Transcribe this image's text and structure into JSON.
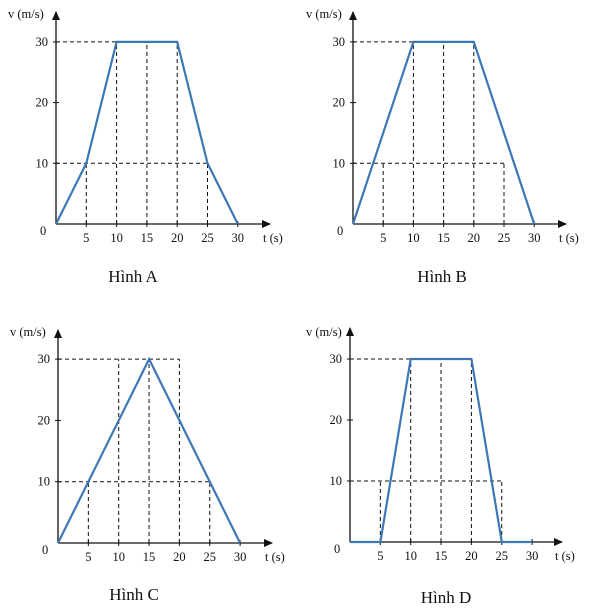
{
  "colors": {
    "line": "#3d78b6",
    "axis": "#111111",
    "grid": "#111111"
  },
  "chart_data": [
    {
      "type": "line",
      "title": "Hình A",
      "xlabel": "t (s)",
      "ylabel": "v (m/s)",
      "x_ticks": [
        "5",
        "10",
        "15",
        "20",
        "25",
        "30"
      ],
      "y_ticks": [
        "10",
        "20",
        "30"
      ],
      "origin_label": "0",
      "xlim": [
        0,
        30
      ],
      "ylim": [
        0,
        30
      ],
      "series": [
        {
          "points": [
            [
              0,
              0
            ],
            [
              5,
              10
            ],
            [
              10,
              30
            ],
            [
              20,
              30
            ],
            [
              25,
              10
            ],
            [
              30,
              0
            ]
          ]
        }
      ],
      "guides": [
        {
          "x": 5,
          "y": 10
        },
        {
          "x": 10,
          "y": 30
        },
        {
          "x": 15,
          "y": 30
        },
        {
          "x": 20,
          "y": 30
        },
        {
          "x": 25,
          "y": 10
        }
      ],
      "h_guides": [
        {
          "y": 30,
          "x_end": 10
        },
        {
          "y": 10,
          "x_end": 25
        }
      ]
    },
    {
      "type": "line",
      "title": "Hình B",
      "xlabel": "t (s)",
      "ylabel": "v (m/s)",
      "x_ticks": [
        "5",
        "10",
        "15",
        "20",
        "25",
        "30"
      ],
      "y_ticks": [
        "10",
        "20",
        "30"
      ],
      "origin_label": "0",
      "xlim": [
        0,
        30
      ],
      "ylim": [
        0,
        30
      ],
      "series": [
        {
          "points": [
            [
              0,
              0
            ],
            [
              10,
              30
            ],
            [
              20,
              30
            ],
            [
              30,
              0
            ]
          ]
        }
      ],
      "guides": [
        {
          "x": 5,
          "y": 10
        },
        {
          "x": 10,
          "y": 30
        },
        {
          "x": 15,
          "y": 30
        },
        {
          "x": 20,
          "y": 30
        },
        {
          "x": 25,
          "y": 10
        }
      ],
      "h_guides": [
        {
          "y": 30,
          "x_end": 10
        },
        {
          "y": 10,
          "x_end": 25
        }
      ]
    },
    {
      "type": "line",
      "title": "Hình C",
      "xlabel": "t (s)",
      "ylabel": "v (m/s)",
      "x_ticks": [
        "5",
        "10",
        "15",
        "20",
        "25",
        "30"
      ],
      "y_ticks": [
        "10",
        "20",
        "30"
      ],
      "origin_label": "0",
      "xlim": [
        0,
        30
      ],
      "ylim": [
        0,
        30
      ],
      "series": [
        {
          "points": [
            [
              0,
              0
            ],
            [
              15,
              30
            ],
            [
              30,
              0
            ]
          ]
        }
      ],
      "guides": [
        {
          "x": 5,
          "y": 10
        },
        {
          "x": 10,
          "y": 30
        },
        {
          "x": 15,
          "y": 30
        },
        {
          "x": 20,
          "y": 30
        },
        {
          "x": 25,
          "y": 10
        }
      ],
      "h_guides": [
        {
          "y": 30,
          "x_end": 20
        },
        {
          "y": 10,
          "x_end": 25
        }
      ]
    },
    {
      "type": "line",
      "title": "Hình D",
      "xlabel": "t (s)",
      "ylabel": "v (m/s)",
      "x_ticks": [
        "5",
        "10",
        "15",
        "20",
        "25",
        "30"
      ],
      "y_ticks": [
        "10",
        "20",
        "30"
      ],
      "origin_label": "0",
      "xlim": [
        0,
        30
      ],
      "ylim": [
        0,
        30
      ],
      "series": [
        {
          "points": [
            [
              0,
              0
            ],
            [
              5,
              0
            ],
            [
              10,
              30
            ],
            [
              20,
              30
            ],
            [
              25,
              0
            ],
            [
              30,
              0
            ]
          ]
        }
      ],
      "guides": [
        {
          "x": 5,
          "y": 10
        },
        {
          "x": 10,
          "y": 30
        },
        {
          "x": 15,
          "y": 30
        },
        {
          "x": 20,
          "y": 30
        },
        {
          "x": 25,
          "y": 10
        }
      ],
      "h_guides": [
        {
          "y": 30,
          "x_end": 10
        },
        {
          "y": 10,
          "x_end": 25
        }
      ]
    }
  ]
}
